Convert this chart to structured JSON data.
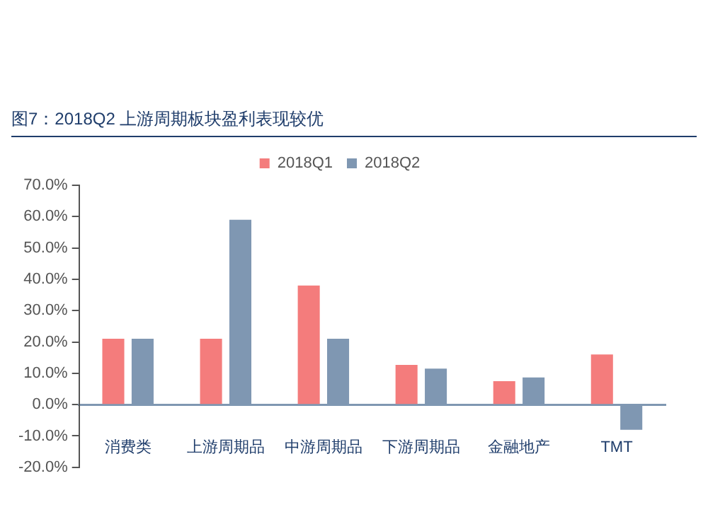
{
  "chart_data": {
    "type": "bar",
    "title": "图7：2018Q2 上游周期板块盈利表现较优",
    "categories": [
      "消费类",
      "上游周期品",
      "中游周期品",
      "下游周期品",
      "金融地产",
      "TMT"
    ],
    "series": [
      {
        "name": "2018Q1",
        "color": "#f47c7c",
        "values": [
          21,
          21,
          38,
          12.7,
          7.5,
          16
        ]
      },
      {
        "name": "2018Q2",
        "color": "#7f97b2",
        "values": [
          21,
          59,
          21,
          11.5,
          8.7,
          -8
        ]
      }
    ],
    "ylim": [
      -20,
      70
    ],
    "yticks": [
      {
        "value": -20,
        "label": "-20.0%"
      },
      {
        "value": -10,
        "label": "-10.0%"
      },
      {
        "value": 0,
        "label": "0.0%"
      },
      {
        "value": 10,
        "label": "10.0%"
      },
      {
        "value": 20,
        "label": "20.0%"
      },
      {
        "value": 30,
        "label": "30.0%"
      },
      {
        "value": 40,
        "label": "40.0%"
      },
      {
        "value": 50,
        "label": "50.0%"
      },
      {
        "value": 60,
        "label": "60.0%"
      },
      {
        "value": 70,
        "label": "70.0%"
      }
    ],
    "grid": false,
    "legend": "top"
  }
}
